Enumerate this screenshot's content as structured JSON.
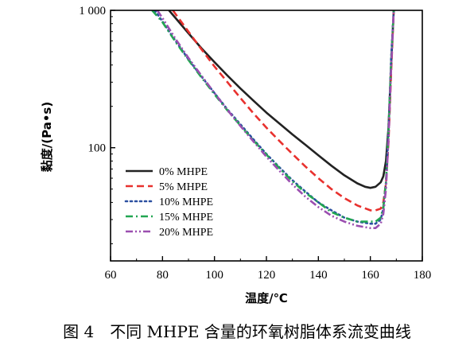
{
  "figure": {
    "caption": "图 4　不同 MHPE 含量的环氧树脂体系流变曲线"
  },
  "chart_data": {
    "type": "line",
    "title": "",
    "xlabel": "温度/℃",
    "ylabel": "黏度/(Pa•s)",
    "xlim": [
      60,
      180
    ],
    "ylim": [
      15,
      1000
    ],
    "yscale": "log",
    "xticks": [
      60,
      80,
      100,
      120,
      140,
      160,
      180
    ],
    "xtick_labels": [
      "60",
      "80",
      "100",
      "120",
      "140",
      "160",
      "180"
    ],
    "yticks": [
      100,
      1000
    ],
    "ytick_labels": [
      "100",
      "1 000"
    ],
    "grid": false,
    "legend_position": "lower-left",
    "series": [
      {
        "name": "0% MHPE",
        "color": "#222222",
        "dash": "solid",
        "x": [
          82.5,
          85,
          90,
          95,
          100,
          105,
          110,
          115,
          120,
          125,
          130,
          135,
          140,
          145,
          150,
          155,
          158,
          160,
          162,
          164,
          165,
          166,
          167,
          168,
          169
        ],
        "y": [
          1000,
          880,
          680,
          530,
          420,
          335,
          270,
          220,
          180,
          150,
          125,
          105,
          88,
          74,
          63,
          55,
          52,
          51,
          52,
          56,
          62,
          80,
          140,
          400,
          1000
        ]
      },
      {
        "name": "5% MHPE",
        "color": "#e8312e",
        "dash": "dashed",
        "x": [
          84,
          85,
          90,
          95,
          100,
          105,
          110,
          115,
          120,
          125,
          130,
          135,
          140,
          145,
          150,
          155,
          160,
          162,
          164,
          165,
          166,
          167,
          168,
          169
        ],
        "y": [
          1000,
          940,
          700,
          520,
          390,
          300,
          230,
          178,
          140,
          112,
          90,
          73,
          60,
          50,
          43,
          38,
          35,
          35,
          36,
          40,
          55,
          110,
          350,
          1000
        ]
      },
      {
        "name": "10% MHPE",
        "color": "#2b4fa0",
        "dash": "dotted",
        "x": [
          77,
          80,
          85,
          90,
          95,
          100,
          105,
          110,
          115,
          120,
          125,
          130,
          135,
          140,
          145,
          150,
          155,
          160,
          162,
          164,
          165,
          166,
          167,
          168,
          169
        ],
        "y": [
          1000,
          830,
          600,
          440,
          330,
          250,
          190,
          148,
          115,
          90,
          72,
          58,
          48,
          40,
          35,
          31,
          29,
          28,
          28,
          30,
          36,
          55,
          130,
          450,
          1000
        ]
      },
      {
        "name": "15% MHPE",
        "color": "#22a652",
        "dash": "dashdot",
        "x": [
          76,
          80,
          85,
          90,
          95,
          100,
          105,
          110,
          115,
          120,
          125,
          130,
          135,
          140,
          145,
          150,
          155,
          160,
          162,
          164,
          165,
          166,
          167,
          168,
          169
        ],
        "y": [
          1000,
          820,
          590,
          435,
          325,
          245,
          187,
          145,
          113,
          89,
          71,
          57,
          47,
          40,
          34,
          31,
          29,
          29,
          29,
          31,
          37,
          56,
          130,
          420,
          1000
        ]
      },
      {
        "name": "20% MHPE",
        "color": "#9b4fb0",
        "dash": "dashdotdot",
        "x": [
          78,
          80,
          85,
          90,
          95,
          100,
          105,
          110,
          115,
          120,
          125,
          130,
          135,
          140,
          145,
          150,
          155,
          160,
          162,
          164,
          165,
          166,
          167,
          168,
          169
        ],
        "y": [
          1000,
          880,
          620,
          450,
          335,
          250,
          188,
          144,
          111,
          86,
          68,
          54,
          44,
          37,
          32,
          29,
          27,
          26,
          26,
          28,
          33,
          50,
          115,
          380,
          1000
        ]
      }
    ]
  }
}
